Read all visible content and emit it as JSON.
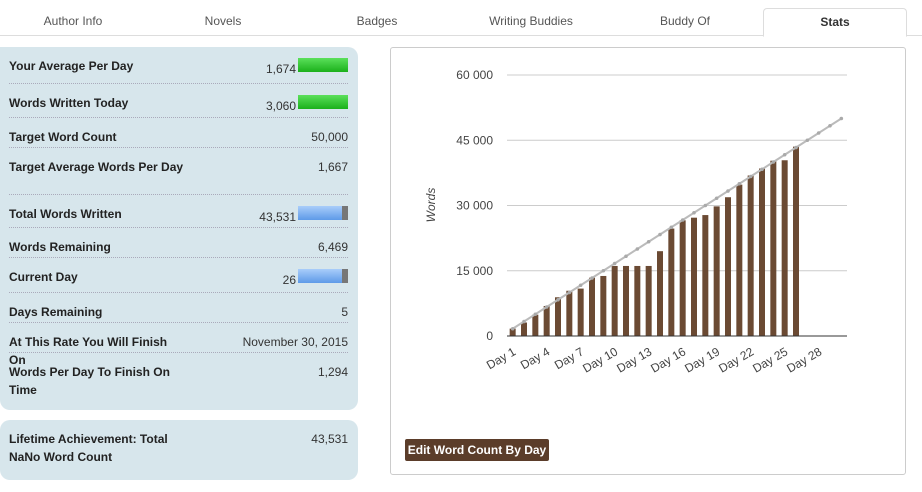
{
  "tabs": [
    "Author Info",
    "Novels",
    "Badges",
    "Writing Buddies",
    "Buddy Of",
    "Stats"
  ],
  "active_tab": "Stats",
  "stats": [
    {
      "label": "Your Average Per Day",
      "value": "1,674",
      "bar": "green",
      "progress": 1.0
    },
    {
      "label": "Words Written Today",
      "value": "3,060",
      "bar": "green",
      "progress": 1.0
    },
    {
      "label": "Target Word Count",
      "value": "50,000"
    },
    {
      "label": "Target Average Words Per Day",
      "value": "1,667"
    },
    {
      "label": "Total Words Written",
      "value": "43,531",
      "bar": "blue",
      "progress": 0.87
    },
    {
      "label": "Words Remaining",
      "value": "6,469"
    },
    {
      "label": "Current Day",
      "value": "26",
      "bar": "blue",
      "progress": 0.87
    },
    {
      "label": "Days Remaining",
      "value": "5"
    },
    {
      "label": "At This Rate You Will Finish On",
      "value": "November 30, 2015"
    },
    {
      "label": "Words Per Day To Finish On Time",
      "value": "1,294"
    }
  ],
  "lifetime": {
    "label": "Lifetime Achievement: Total NaNo Word Count",
    "value": "43,531"
  },
  "edit_button": "Edit Word Count By Day",
  "chart_data": {
    "type": "bar",
    "ylabel": "Words",
    "ylim": [
      0,
      60000
    ],
    "yticks": [
      0,
      15000,
      30000,
      45000,
      60000
    ],
    "ytick_labels": [
      "0",
      "15 000",
      "30 000",
      "45 000",
      "60 000"
    ],
    "xtick_labels": [
      "Day 1",
      "Day 4",
      "Day 7",
      "Day 10",
      "Day 13",
      "Day 16",
      "Day 19",
      "Day 22",
      "Day 25",
      "Day 28"
    ],
    "days": 30,
    "series": [
      {
        "name": "Words",
        "type": "bar",
        "color": "#6b4a33",
        "values": [
          1700,
          3100,
          4900,
          6900,
          8900,
          10400,
          10900,
          13400,
          13800,
          16100,
          16100,
          16100,
          16100,
          19500,
          24700,
          26600,
          27200,
          27800,
          29800,
          31900,
          34800,
          36900,
          38500,
          40300,
          40400,
          43531
        ]
      },
      {
        "name": "Target",
        "type": "line",
        "color": "#bbbbbb",
        "values": [
          1667,
          3333,
          5000,
          6667,
          8333,
          10000,
          11667,
          13333,
          15000,
          16667,
          18333,
          20000,
          21667,
          23333,
          25000,
          26667,
          28333,
          30000,
          31667,
          33333,
          35000,
          36667,
          38333,
          40000,
          41667,
          43333,
          45000,
          46667,
          48333,
          50000
        ]
      }
    ]
  }
}
